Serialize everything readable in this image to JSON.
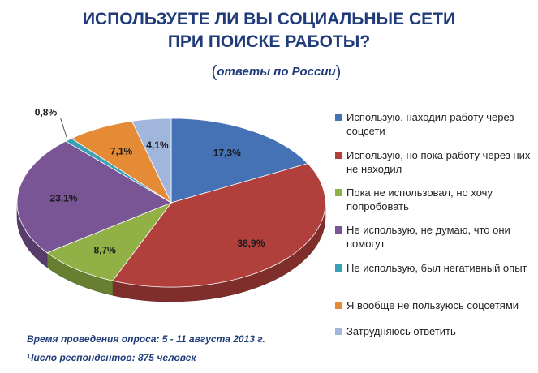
{
  "title_line1": "ИСПОЛЬЗУЕТЕ ЛИ ВЫ СОЦИАЛЬНЫЕ СЕТИ",
  "title_line2": "ПРИ ПОИСКЕ РАБОТЫ?",
  "subtitle": "ответы по России",
  "footer": {
    "line1": "Время проведения опроса:  5 - 11 августа 2013 г.",
    "line2": "Число респондентов:  875 человек"
  },
  "chart_data": {
    "type": "pie",
    "title": "ИСПОЛЬЗУЕТЕ ЛИ ВЫ СОЦИАЛЬНЫЕ СЕТИ ПРИ ПОИСКЕ РАБОТЫ?",
    "subtitle": "ответы по России",
    "legend_position": "right",
    "slices": [
      {
        "name": "Использую, находил работу через соцсети",
        "value": 17.3,
        "label": "17,3%",
        "color": "#4472b4"
      },
      {
        "name": "Использую, но пока работу через них не находил",
        "value": 38.9,
        "label": "38,9%",
        "color": "#b1403c"
      },
      {
        "name": "Пока не использовал, но хочу попробовать",
        "value": 8.7,
        "label": "8,7%",
        "color": "#91b046"
      },
      {
        "name": "Не использую, не думаю, что они помогут",
        "value": 23.1,
        "label": "23,1%",
        "color": "#7a5595"
      },
      {
        "name": "Не использую, был негативный опыт",
        "value": 0.8,
        "label": "0,8%",
        "color": "#3aa0b8"
      },
      {
        "name": "Я вообще не пользуюсь соцсетями",
        "value": 7.1,
        "label": "7,1%",
        "color": "#e58a35"
      },
      {
        "name": "Затрудняюсь ответить",
        "value": 4.1,
        "label": "4,1%",
        "color": "#a0b6dc"
      }
    ]
  }
}
